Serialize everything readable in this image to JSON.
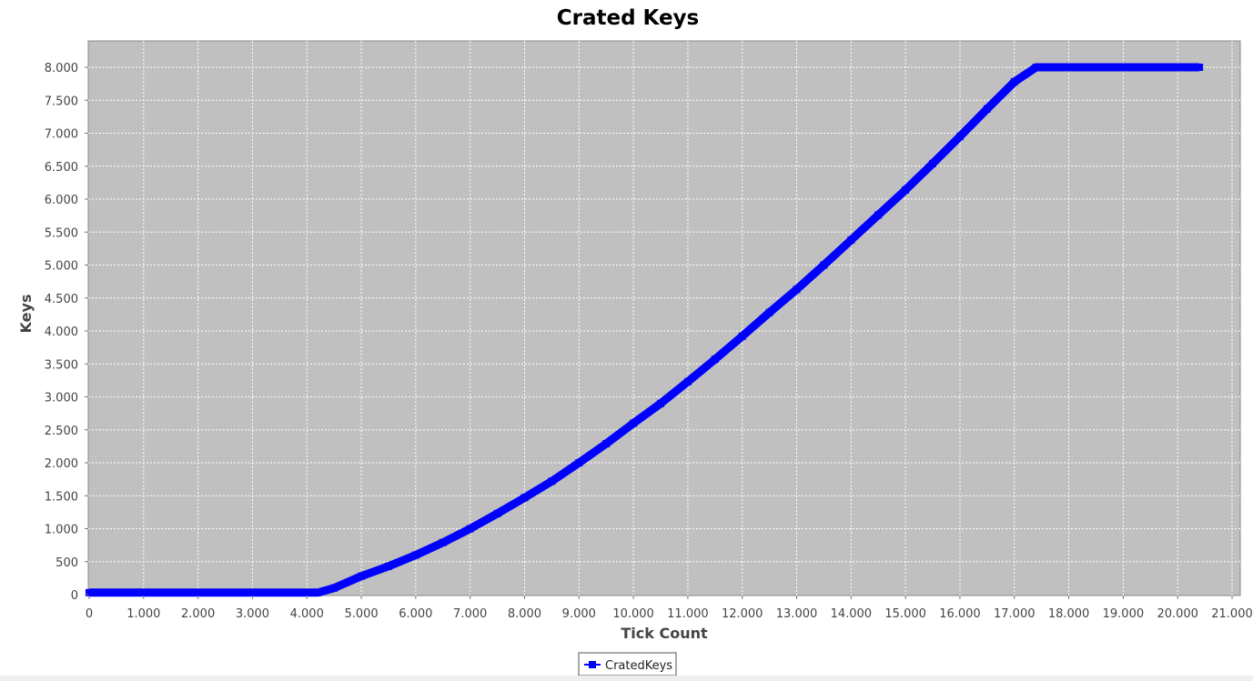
{
  "chart_data": {
    "type": "line",
    "title": "Crated Keys",
    "xlabel": "Tick Count",
    "ylabel": "Keys",
    "xlim": [
      0,
      21500
    ],
    "ylim": [
      0,
      8400
    ],
    "x_ticks": [
      0,
      1000,
      2000,
      3000,
      4000,
      5000,
      6000,
      7000,
      8000,
      9000,
      10000,
      11000,
      12000,
      13000,
      14000,
      15000,
      16000,
      17000,
      18000,
      19000,
      20000,
      21000
    ],
    "x_tick_labels": [
      "0",
      "1.000",
      "2.000",
      "3.000",
      "4.000",
      "5.000",
      "6.000",
      "7.000",
      "8.000",
      "9.000",
      "10.000",
      "11.000",
      "12.000",
      "13.000",
      "14.000",
      "15.000",
      "16.000",
      "17.000",
      "18.000",
      "19.000",
      "20.000",
      "21.000"
    ],
    "y_ticks": [
      0,
      500,
      1000,
      1500,
      2000,
      2500,
      3000,
      3500,
      4000,
      4500,
      5000,
      5500,
      6000,
      6500,
      7000,
      7500,
      8000
    ],
    "y_tick_labels": [
      "0",
      "500",
      "1.000",
      "1.500",
      "2.000",
      "2.500",
      "3.000",
      "3.500",
      "4.000",
      "4.500",
      "5.000",
      "5.500",
      "6.000",
      "6.500",
      "7.000",
      "7.500",
      "8.000"
    ],
    "grid": true,
    "legend_position": "bottom-center",
    "plot_background": "#c0c0c0",
    "series": [
      {
        "name": "CratedKeys",
        "color": "#0000ff",
        "x": [
          0,
          1000,
          2000,
          3000,
          4000,
          4200,
          4500,
          5000,
          5500,
          6000,
          6500,
          7000,
          7500,
          8000,
          8500,
          9000,
          9500,
          10000,
          10500,
          11000,
          11500,
          12000,
          12500,
          13000,
          13500,
          14000,
          14500,
          15000,
          15500,
          16000,
          16500,
          17000,
          17400,
          18000,
          19000,
          20000,
          20400
        ],
        "y": [
          30,
          30,
          30,
          30,
          30,
          30,
          100,
          280,
          430,
          600,
          790,
          1000,
          1230,
          1470,
          1720,
          2000,
          2290,
          2600,
          2900,
          3230,
          3570,
          3920,
          4280,
          4630,
          5000,
          5380,
          5760,
          6140,
          6540,
          6950,
          7370,
          7780,
          8000,
          8000,
          8000,
          8000,
          8000
        ]
      }
    ]
  }
}
